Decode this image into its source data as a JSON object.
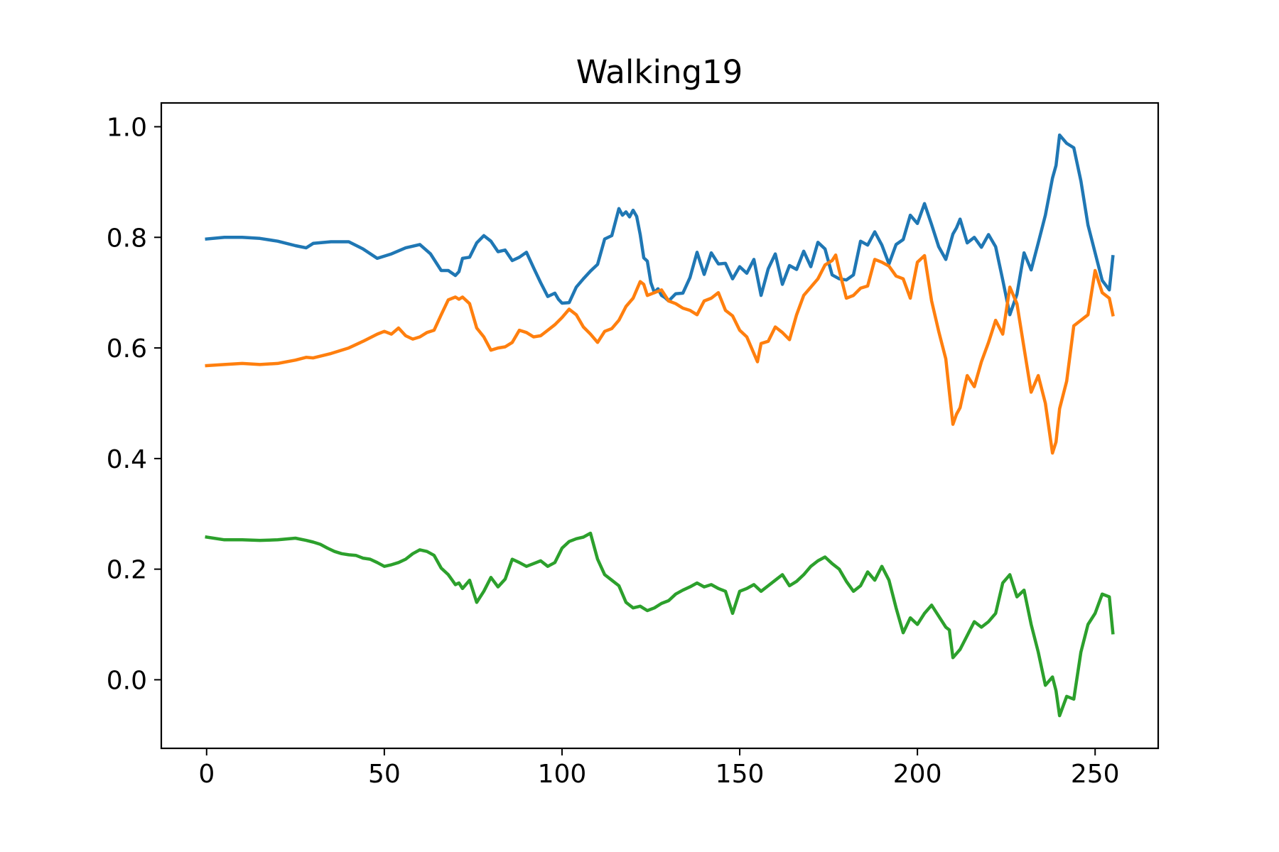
{
  "chart_data": {
    "type": "line",
    "title": "Walking19",
    "xlabel": "",
    "ylabel": "",
    "xlim": [
      -12.75,
      267.75
    ],
    "ylim": [
      -0.124,
      1.043
    ],
    "xticks": [
      0,
      50,
      100,
      150,
      200,
      250
    ],
    "yticks": [
      0.0,
      0.2,
      0.4,
      0.6,
      0.8,
      1.0
    ],
    "xtick_labels": [
      "0",
      "50",
      "100",
      "150",
      "200",
      "250"
    ],
    "ytick_labels": [
      "0.0",
      "0.2",
      "0.4",
      "0.6",
      "0.8",
      "1.0"
    ],
    "grid": false,
    "legend": "none",
    "series": [
      {
        "color": "#1f77b4",
        "x": [
          0,
          5,
          10,
          15,
          20,
          25,
          28,
          30,
          35,
          40,
          44,
          48,
          52,
          56,
          60,
          63,
          66,
          68,
          70,
          71,
          72,
          74,
          76,
          78,
          80,
          82,
          84,
          86,
          88,
          90,
          92,
          94,
          96,
          98,
          99,
          100,
          102,
          104,
          106,
          108,
          110,
          112,
          114,
          116,
          117,
          118,
          119,
          120,
          121,
          122,
          123,
          124,
          125,
          126,
          127,
          128,
          129,
          130,
          132,
          134,
          136,
          138,
          140,
          142,
          144,
          146,
          148,
          150,
          152,
          154,
          156,
          158,
          160,
          162,
          164,
          166,
          168,
          170,
          172,
          174,
          176,
          178,
          180,
          182,
          184,
          186,
          188,
          190,
          192,
          194,
          196,
          198,
          200,
          202,
          204,
          206,
          208,
          210,
          211,
          212,
          214,
          216,
          218,
          220,
          222,
          224,
          226,
          228,
          230,
          232,
          234,
          236,
          238,
          239,
          240,
          242,
          244,
          246,
          248,
          250,
          252,
          254,
          255
        ],
        "values": [
          0.797,
          0.8,
          0.8,
          0.798,
          0.793,
          0.785,
          0.781,
          0.789,
          0.792,
          0.792,
          0.779,
          0.762,
          0.77,
          0.781,
          0.787,
          0.77,
          0.74,
          0.74,
          0.731,
          0.738,
          0.762,
          0.764,
          0.79,
          0.803,
          0.793,
          0.774,
          0.777,
          0.758,
          0.764,
          0.773,
          0.745,
          0.718,
          0.693,
          0.699,
          0.688,
          0.681,
          0.682,
          0.71,
          0.725,
          0.739,
          0.751,
          0.797,
          0.803,
          0.852,
          0.84,
          0.846,
          0.837,
          0.849,
          0.838,
          0.805,
          0.763,
          0.757,
          0.718,
          0.7,
          0.707,
          0.695,
          0.691,
          0.685,
          0.698,
          0.699,
          0.727,
          0.773,
          0.733,
          0.772,
          0.752,
          0.753,
          0.725,
          0.747,
          0.735,
          0.76,
          0.695,
          0.743,
          0.77,
          0.715,
          0.749,
          0.742,
          0.775,
          0.747,
          0.791,
          0.779,
          0.732,
          0.725,
          0.723,
          0.732,
          0.793,
          0.786,
          0.81,
          0.786,
          0.752,
          0.787,
          0.796,
          0.84,
          0.825,
          0.861,
          0.823,
          0.783,
          0.76,
          0.806,
          0.817,
          0.833,
          0.79,
          0.8,
          0.782,
          0.805,
          0.783,
          0.723,
          0.66,
          0.697,
          0.772,
          0.741,
          0.79,
          0.84,
          0.907,
          0.93,
          0.985,
          0.97,
          0.962,
          0.902,
          0.822,
          0.772,
          0.722,
          0.705,
          0.765
        ]
      },
      {
        "color": "#ff7f0e",
        "x": [
          0,
          5,
          10,
          15,
          20,
          25,
          28,
          30,
          35,
          40,
          44,
          48,
          50,
          52,
          54,
          56,
          58,
          60,
          62,
          64,
          66,
          68,
          70,
          71,
          72,
          74,
          76,
          78,
          80,
          82,
          84,
          86,
          88,
          90,
          92,
          94,
          96,
          98,
          100,
          102,
          104,
          106,
          108,
          110,
          112,
          114,
          116,
          118,
          120,
          122,
          123,
          124,
          126,
          128,
          130,
          132,
          134,
          136,
          138,
          140,
          142,
          144,
          146,
          148,
          150,
          152,
          154,
          155,
          156,
          158,
          160,
          162,
          164,
          166,
          168,
          170,
          172,
          174,
          176,
          177,
          178,
          180,
          182,
          184,
          186,
          188,
          190,
          192,
          194,
          196,
          198,
          200,
          202,
          204,
          206,
          208,
          209,
          210,
          211,
          212,
          214,
          216,
          218,
          220,
          222,
          224,
          226,
          228,
          230,
          232,
          234,
          236,
          238,
          239,
          240,
          242,
          244,
          246,
          248,
          250,
          252,
          254,
          255
        ],
        "values": [
          0.568,
          0.57,
          0.572,
          0.57,
          0.572,
          0.578,
          0.583,
          0.582,
          0.59,
          0.6,
          0.612,
          0.625,
          0.63,
          0.625,
          0.636,
          0.622,
          0.616,
          0.62,
          0.628,
          0.632,
          0.66,
          0.687,
          0.692,
          0.688,
          0.692,
          0.68,
          0.636,
          0.62,
          0.596,
          0.6,
          0.602,
          0.61,
          0.632,
          0.628,
          0.62,
          0.622,
          0.632,
          0.642,
          0.655,
          0.67,
          0.66,
          0.638,
          0.625,
          0.61,
          0.63,
          0.635,
          0.65,
          0.675,
          0.69,
          0.72,
          0.715,
          0.695,
          0.7,
          0.705,
          0.685,
          0.68,
          0.672,
          0.668,
          0.66,
          0.685,
          0.69,
          0.7,
          0.668,
          0.658,
          0.632,
          0.62,
          0.59,
          0.575,
          0.608,
          0.612,
          0.638,
          0.628,
          0.615,
          0.66,
          0.695,
          0.71,
          0.725,
          0.75,
          0.758,
          0.768,
          0.74,
          0.69,
          0.695,
          0.708,
          0.712,
          0.76,
          0.755,
          0.748,
          0.73,
          0.725,
          0.69,
          0.755,
          0.767,
          0.685,
          0.63,
          0.58,
          0.52,
          0.462,
          0.48,
          0.492,
          0.55,
          0.53,
          0.575,
          0.61,
          0.65,
          0.625,
          0.71,
          0.68,
          0.6,
          0.52,
          0.55,
          0.5,
          0.41,
          0.43,
          0.49,
          0.54,
          0.64,
          0.65,
          0.66,
          0.74,
          0.7,
          0.69,
          0.66
        ]
      },
      {
        "color": "#2ca02c",
        "x": [
          0,
          5,
          10,
          15,
          20,
          25,
          28,
          30,
          32,
          34,
          36,
          38,
          40,
          42,
          44,
          46,
          48,
          50,
          52,
          54,
          56,
          58,
          60,
          62,
          64,
          66,
          68,
          70,
          71,
          72,
          74,
          76,
          78,
          80,
          82,
          84,
          86,
          88,
          90,
          92,
          94,
          96,
          98,
          100,
          102,
          104,
          106,
          108,
          110,
          112,
          114,
          116,
          118,
          120,
          122,
          124,
          126,
          128,
          130,
          132,
          134,
          136,
          138,
          140,
          142,
          144,
          146,
          148,
          150,
          152,
          154,
          156,
          158,
          160,
          162,
          164,
          166,
          168,
          170,
          172,
          174,
          176,
          178,
          180,
          182,
          184,
          186,
          188,
          190,
          192,
          194,
          196,
          198,
          200,
          202,
          204,
          206,
          208,
          209,
          210,
          212,
          214,
          216,
          218,
          220,
          222,
          224,
          226,
          228,
          230,
          232,
          234,
          236,
          238,
          239,
          240,
          242,
          244,
          246,
          248,
          250,
          252,
          254,
          255
        ],
        "values": [
          0.258,
          0.253,
          0.253,
          0.252,
          0.253,
          0.256,
          0.252,
          0.249,
          0.245,
          0.238,
          0.232,
          0.228,
          0.226,
          0.225,
          0.22,
          0.218,
          0.212,
          0.205,
          0.208,
          0.212,
          0.218,
          0.228,
          0.235,
          0.232,
          0.225,
          0.202,
          0.19,
          0.172,
          0.175,
          0.165,
          0.18,
          0.14,
          0.16,
          0.185,
          0.168,
          0.182,
          0.218,
          0.212,
          0.205,
          0.21,
          0.215,
          0.205,
          0.212,
          0.238,
          0.25,
          0.255,
          0.258,
          0.265,
          0.218,
          0.19,
          0.18,
          0.17,
          0.14,
          0.13,
          0.133,
          0.125,
          0.13,
          0.138,
          0.143,
          0.155,
          0.162,
          0.168,
          0.175,
          0.168,
          0.172,
          0.165,
          0.16,
          0.12,
          0.16,
          0.165,
          0.172,
          0.16,
          0.17,
          0.18,
          0.19,
          0.17,
          0.178,
          0.19,
          0.205,
          0.215,
          0.222,
          0.21,
          0.2,
          0.178,
          0.16,
          0.17,
          0.195,
          0.18,
          0.205,
          0.18,
          0.13,
          0.085,
          0.112,
          0.1,
          0.12,
          0.135,
          0.115,
          0.095,
          0.09,
          0.04,
          0.055,
          0.08,
          0.105,
          0.095,
          0.105,
          0.12,
          0.175,
          0.19,
          0.15,
          0.162,
          0.1,
          0.05,
          -0.01,
          0.005,
          -0.02,
          -0.065,
          -0.03,
          -0.035,
          0.05,
          0.1,
          0.12,
          0.155,
          0.15,
          0.085
        ]
      }
    ]
  }
}
